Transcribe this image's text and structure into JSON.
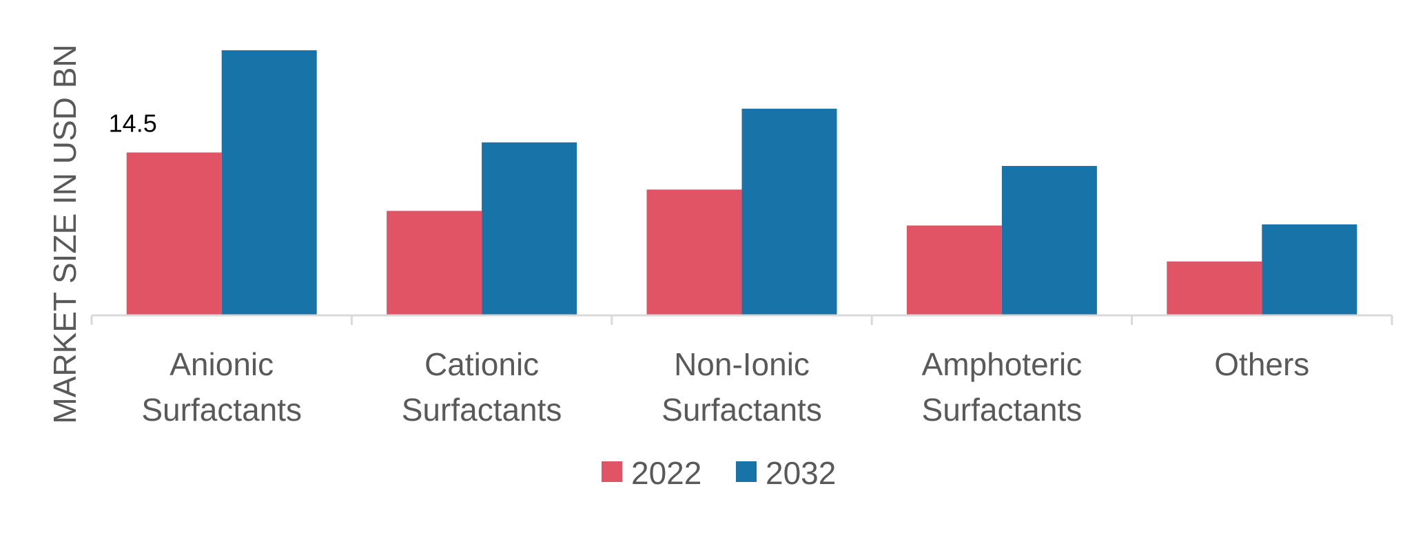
{
  "chart_data": {
    "type": "bar",
    "ylabel": "MARKET SIZE IN USD BN",
    "categories": [
      [
        "Anionic",
        "Surfactants"
      ],
      [
        "Cationic",
        "Surfactants"
      ],
      [
        "Non-Ionic",
        "Surfactants"
      ],
      [
        "Amphoteric",
        "Surfactants"
      ],
      [
        "Others"
      ]
    ],
    "series": [
      {
        "name": "2022",
        "color": "#E05465",
        "values": [
          14.5,
          9.3,
          11.2,
          8.0,
          4.8
        ]
      },
      {
        "name": "2032",
        "color": "#1874A8",
        "values": [
          23.6,
          15.4,
          18.4,
          13.3,
          8.1
        ]
      }
    ],
    "data_labels": [
      {
        "series": 0,
        "category": 0,
        "text": "14.5"
      }
    ],
    "ylim": [
      0,
      25
    ],
    "grid": false,
    "legend": "bottom"
  }
}
